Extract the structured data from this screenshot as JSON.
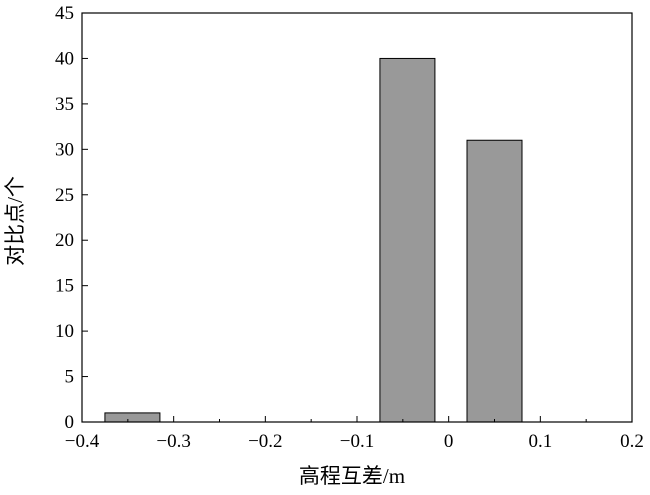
{
  "chart_data": {
    "type": "bar",
    "title": "",
    "xlabel": "高程互差/m",
    "ylabel": "对比点/个",
    "xlim": [
      -0.4,
      0.2
    ],
    "ylim": [
      0,
      45
    ],
    "x_ticks": [
      -0.4,
      -0.3,
      -0.2,
      -0.1,
      0,
      0.1,
      0.2
    ],
    "x_tick_labels": [
      "−0.4",
      "−0.3",
      "−0.2",
      "−0.1",
      "0",
      "0.1",
      "0.2"
    ],
    "y_ticks": [
      0,
      5,
      10,
      15,
      20,
      25,
      30,
      35,
      40,
      45
    ],
    "y_tick_labels": [
      "0",
      "5",
      "10",
      "15",
      "20",
      "25",
      "30",
      "35",
      "40",
      "45"
    ],
    "bins": [
      {
        "x_start": -0.375,
        "x_end": -0.315,
        "value": 1
      },
      {
        "x_start": -0.075,
        "x_end": -0.015,
        "value": 40
      },
      {
        "x_start": 0.02,
        "x_end": 0.08,
        "value": 31
      }
    ],
    "bar_color": "#999999",
    "bar_edge_color": "#000000",
    "grid": false
  }
}
